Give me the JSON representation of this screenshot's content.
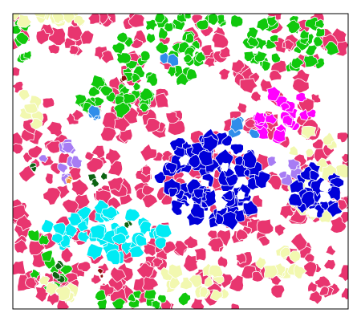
{
  "image": {
    "type": "segmentation-map",
    "background_color": "#ffffff",
    "frame_color": "#000000",
    "outline_color": "#ffffff",
    "legend_visible": false,
    "labels_visible": false
  },
  "palette": [
    {
      "name": "crimson-pink",
      "color": "#e8356f"
    },
    {
      "name": "green",
      "color": "#10c80c"
    },
    {
      "name": "light-yellow",
      "color": "#f2f8b0"
    },
    {
      "name": "blue",
      "color": "#0000d8"
    },
    {
      "name": "cyan",
      "color": "#00ebf4"
    },
    {
      "name": "magenta",
      "color": "#ff00ff"
    },
    {
      "name": "lavender",
      "color": "#a77cf4"
    },
    {
      "name": "sky-blue",
      "color": "#2f8dea"
    },
    {
      "name": "dark-green",
      "color": "#0d6413"
    },
    {
      "name": "dark-red",
      "color": "#8b0e0e"
    },
    {
      "name": "orange",
      "color": "#f28b3c"
    }
  ]
}
